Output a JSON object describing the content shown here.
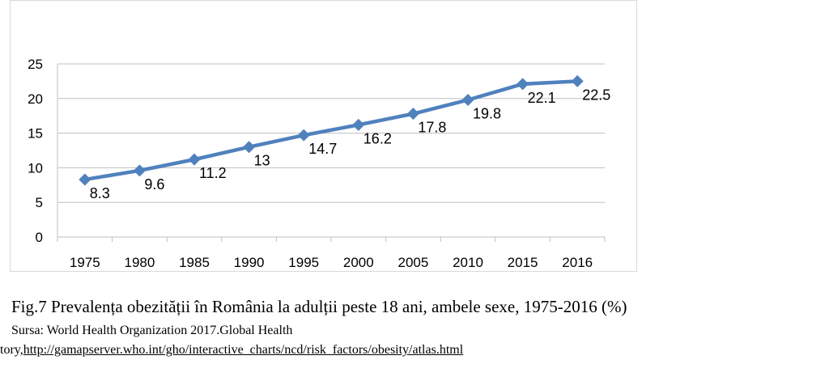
{
  "chart_data": {
    "type": "line",
    "categories": [
      "1975",
      "1980",
      "1985",
      "1990",
      "1995",
      "2000",
      "2005",
      "2010",
      "2015",
      "2016"
    ],
    "series": [
      {
        "values": [
          8.3,
          9.6,
          11.2,
          13,
          14.7,
          16.2,
          17.8,
          19.8,
          22.1,
          22.5
        ],
        "data_labels": [
          "8.3",
          "9.6",
          "11.2",
          "13",
          "14.7",
          "16.2",
          "17.8",
          "19.8",
          "22.1",
          "22.5"
        ]
      }
    ],
    "yticks": [
      "0",
      "5",
      "10",
      "15",
      "20",
      "25"
    ],
    "ylim": [
      0,
      25
    ],
    "grid": true,
    "legend": "none",
    "color": "#4f81bd"
  },
  "caption": {
    "title": "Fig.7 Prevalența obezității în România la adulții peste 18 ani, ambele sexe, 1975-2016 (%)",
    "source_prefix": "Sursa: World Health Organization 2017.Global Health",
    "url_prefix": "tory,",
    "url": "http://gamapserver.who.int/gho/interactive_charts/ncd/risk_factors/obesity/atlas.html"
  }
}
